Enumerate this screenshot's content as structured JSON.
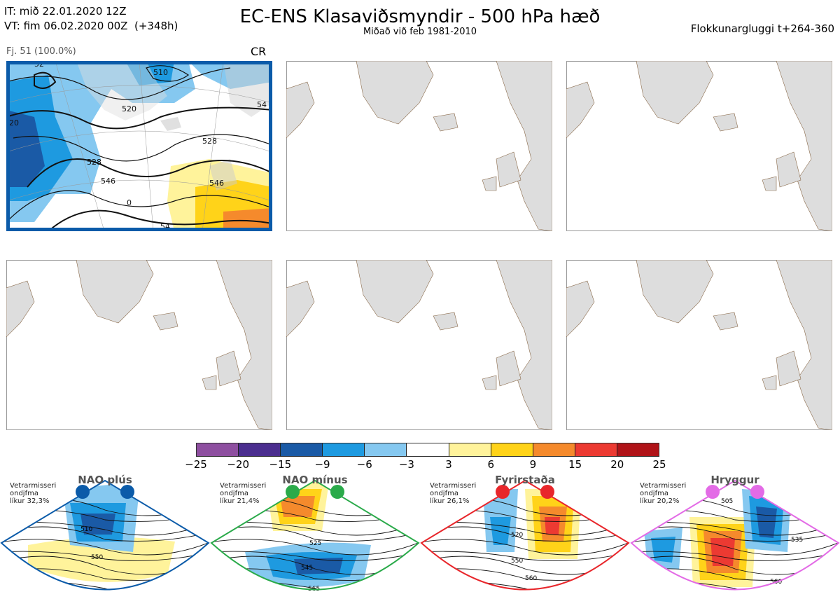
{
  "header": {
    "it_line": "IT: mið 22.01.2020 12Z",
    "vt_line": "VT: fim 06.02.2020 00Z  (+348h)",
    "title": "EC-ENS Klasaviðsmyndir - 500 hPa hæð",
    "subtitle": "Miðað við feb 1981-2010",
    "window": "Flokkunargluggi t+264-360"
  },
  "cluster_panel": {
    "label": "Fj. 51 (100.0%)",
    "code": "CR",
    "contour_labels": [
      "510",
      "520",
      "528",
      "546",
      "528",
      "546",
      "54",
      "0",
      "54",
      "20",
      "52"
    ]
  },
  "colorbar": {
    "colors": [
      "#8e4fa0",
      "#4b2e8f",
      "#1a5aa6",
      "#1e9ae0",
      "#85c8f0",
      "#ffffff",
      "#fff39b",
      "#ffd319",
      "#f58a2c",
      "#ec3a32",
      "#b01318"
    ],
    "ticks": [
      "−25",
      "−20",
      "−15",
      "−9",
      "−6",
      "−3",
      "3",
      "6",
      "9",
      "15",
      "20",
      "25"
    ]
  },
  "regimes": [
    {
      "title": "NAO plús",
      "info": [
        "Vetrarmisseri",
        "ondjfma",
        "líkur 32,3%"
      ],
      "color": "#0b5ba9",
      "labels": [
        "510",
        "550"
      ]
    },
    {
      "title": "NAO mínus",
      "info": [
        "Vetrarmisseri",
        "ondjfma",
        "líkur 21,4%"
      ],
      "color": "#2aaa4a",
      "labels": [
        "525",
        "545",
        "565"
      ]
    },
    {
      "title": "Fyrirstaða",
      "info": [
        "Vetrarmisseri",
        "ondjfma",
        "líkur 26,1%"
      ],
      "color": "#e8262b",
      "labels": [
        "520",
        "550",
        "560"
      ]
    },
    {
      "title": "Hryggur",
      "info": [
        "Vetrarmisseri",
        "ondjfma",
        "líkur 20,2%"
      ],
      "color": "#e36be6",
      "labels": [
        "505",
        "535",
        "560"
      ]
    }
  ]
}
